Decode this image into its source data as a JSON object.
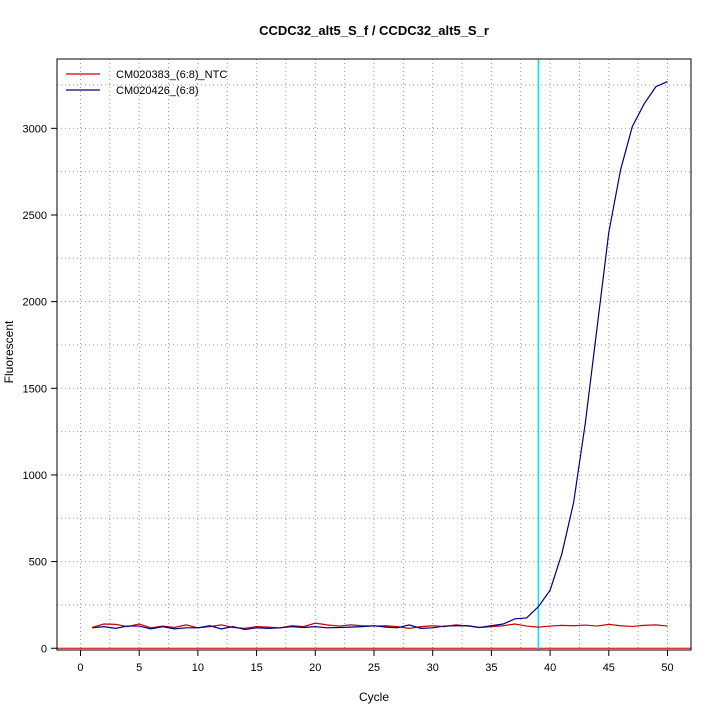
{
  "chart_data": {
    "type": "line",
    "title": "CCDC32_alt5_S_f / CCDC32_alt5_S_r",
    "xlabel": "Cycle",
    "ylabel": "Fluorescent",
    "xlim": [
      -2,
      52
    ],
    "ylim": [
      -10,
      3400
    ],
    "x_ticks": [
      0,
      5,
      10,
      15,
      20,
      25,
      30,
      35,
      40,
      45,
      50
    ],
    "y_ticks": [
      0,
      500,
      1000,
      1500,
      2000,
      2500,
      3000
    ],
    "x_grid": [
      2.5,
      7.5,
      12.5,
      17.5,
      22.5,
      27.5,
      32.5,
      37.5,
      42.5,
      47.5
    ],
    "y_grid": [
      250,
      750,
      1250,
      1750,
      2250,
      2750,
      3250
    ],
    "grid": true,
    "threshold_cycle": 39,
    "threshold_color": "#00e5ee",
    "baseline_value": 0,
    "baseline_color": "#cc0000",
    "legend_position": "top-left",
    "x": [
      1,
      2,
      3,
      4,
      5,
      6,
      7,
      8,
      9,
      10,
      11,
      12,
      13,
      14,
      15,
      16,
      17,
      18,
      19,
      20,
      21,
      22,
      23,
      24,
      25,
      26,
      27,
      28,
      29,
      30,
      31,
      32,
      33,
      34,
      35,
      36,
      37,
      38,
      39,
      40,
      41,
      42,
      43,
      44,
      45,
      46,
      47,
      48,
      49,
      50
    ],
    "series": [
      {
        "name": "CM020383_(6:8)_NTC",
        "color": "#cc0000",
        "values": [
          120,
          140,
          138,
          125,
          140,
          118,
          128,
          120,
          135,
          118,
          125,
          135,
          120,
          115,
          125,
          122,
          118,
          130,
          125,
          145,
          135,
          128,
          135,
          130,
          128,
          130,
          125,
          115,
          125,
          130,
          125,
          135,
          128,
          120,
          125,
          130,
          140,
          128,
          122,
          128,
          132,
          130,
          134,
          128,
          138,
          130,
          126,
          132,
          135,
          128
        ]
      },
      {
        "name": "CM020426_(6:8)",
        "color": "#000080",
        "values": [
          118,
          125,
          115,
          128,
          128,
          112,
          125,
          112,
          118,
          118,
          130,
          112,
          125,
          108,
          118,
          115,
          118,
          125,
          120,
          125,
          118,
          120,
          122,
          125,
          130,
          122,
          118,
          135,
          115,
          118,
          128,
          130,
          130,
          120,
          130,
          140,
          170,
          175,
          240,
          335,
          545,
          840,
          1300,
          1850,
          2400,
          2760,
          3010,
          3140,
          3240,
          3270
        ]
      }
    ]
  }
}
